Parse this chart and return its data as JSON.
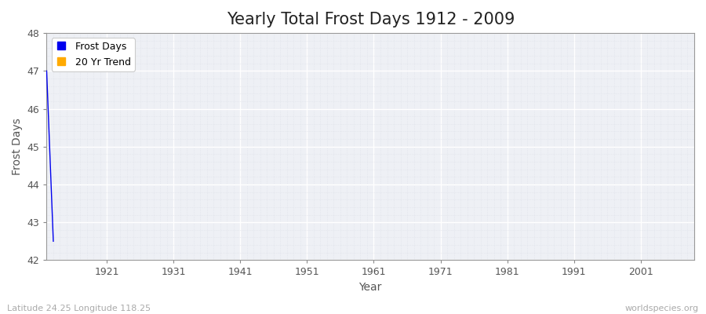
{
  "title": "Yearly Total Frost Days 1912 - 2009",
  "xlabel": "Year",
  "ylabel": "Frost Days",
  "subtitle": "Latitude 24.25 Longitude 118.25",
  "watermark": "worldspecies.org",
  "frost_years": [
    1912,
    1913
  ],
  "frost_days": [
    47.0,
    42.5
  ],
  "line_color": "#0000ee",
  "trend_color": "#ffaa00",
  "plot_bg_color": "#eef0f5",
  "fig_bg_color": "#ffffff",
  "grid_major_color": "#ffffff",
  "grid_minor_color": "#dde0e8",
  "ylim": [
    42,
    48
  ],
  "yticks": [
    42,
    43,
    44,
    45,
    46,
    47,
    48
  ],
  "xticks": [
    1921,
    1931,
    1941,
    1951,
    1961,
    1971,
    1981,
    1991,
    2001
  ],
  "xmin": 1912,
  "xmax": 2009,
  "title_fontsize": 15,
  "axis_label_fontsize": 10,
  "tick_label_fontsize": 9,
  "legend_fontsize": 9
}
